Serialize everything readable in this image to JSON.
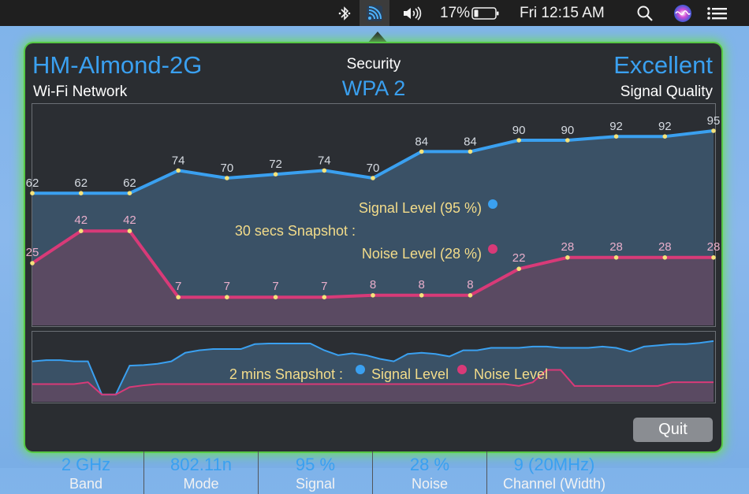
{
  "menubar": {
    "battery_percent": "17%",
    "clock": "Fri 12:15 AM",
    "icons": [
      "bluetooth-icon",
      "wifi-signal-app-icon",
      "volume-icon",
      "battery-icon",
      "spotlight-search-icon",
      "siri-icon",
      "notification-center-icon"
    ]
  },
  "header": {
    "network_name": "HM-Almond-2G",
    "network_caption": "Wi-Fi Network",
    "security_caption": "Security",
    "security_value": "WPA 2",
    "quality_value": "Excellent",
    "quality_caption": "Signal Quality"
  },
  "snapshot": {
    "title": "30 secs Snapshot :",
    "signal_legend": "Signal Level (95 %)",
    "noise_legend": "Noise  Level (28 %)"
  },
  "history": {
    "title": "2 mins Snapshot :",
    "signal_legend": "Signal Level",
    "noise_legend": "Noise  Level"
  },
  "colors": {
    "signal": "#3aa0f0",
    "noise": "#d83a78",
    "point": "#f5e27a",
    "legend_text": "#f3dc8a",
    "accent_glow": "#6fe05a"
  },
  "chart_data": [
    {
      "type": "line",
      "title": "30 secs Snapshot :",
      "x": [
        1,
        2,
        3,
        4,
        5,
        6,
        7,
        8,
        9,
        10,
        11,
        12,
        13,
        14,
        15
      ],
      "series": [
        {
          "name": "Signal Level (95 %)",
          "values": [
            62,
            62,
            62,
            74,
            70,
            72,
            74,
            70,
            84,
            84,
            90,
            90,
            92,
            92,
            95
          ]
        },
        {
          "name": "Noise  Level (28 %)",
          "values": [
            25,
            42,
            42,
            7,
            7,
            7,
            7,
            8,
            8,
            8,
            22,
            28,
            28,
            28,
            28
          ]
        }
      ],
      "ylim": [
        0,
        100
      ]
    },
    {
      "type": "area",
      "title": "2 mins Snapshot :",
      "x": [
        1,
        2,
        3,
        4,
        5,
        6,
        7,
        8,
        9,
        10,
        11,
        12,
        13,
        14,
        15,
        16,
        17,
        18,
        19,
        20,
        21,
        22,
        23,
        24,
        25,
        26,
        27,
        28,
        29,
        30,
        31,
        32,
        33,
        34,
        35,
        36,
        37,
        38,
        39,
        40,
        41,
        42,
        43,
        44,
        45,
        46,
        47,
        48,
        49,
        50
      ],
      "series": [
        {
          "name": "Signal Level",
          "values": [
            62,
            64,
            64,
            62,
            62,
            8,
            8,
            55,
            56,
            58,
            62,
            76,
            80,
            82,
            82,
            82,
            90,
            91,
            91,
            91,
            91,
            80,
            72,
            75,
            72,
            66,
            62,
            74,
            76,
            74,
            70,
            80,
            80,
            84,
            84,
            84,
            86,
            86,
            84,
            84,
            84,
            86,
            84,
            78,
            86,
            88,
            90,
            90,
            92,
            95
          ]
        },
        {
          "name": "Noise  Level",
          "values": [
            25,
            25,
            25,
            25,
            28,
            8,
            8,
            20,
            23,
            25,
            25,
            25,
            25,
            25,
            25,
            25,
            25,
            25,
            25,
            25,
            25,
            25,
            25,
            25,
            25,
            25,
            25,
            25,
            25,
            25,
            25,
            25,
            25,
            25,
            25,
            22,
            28,
            48,
            48,
            22,
            22,
            22,
            22,
            22,
            22,
            22,
            28,
            28,
            28,
            28
          ]
        }
      ],
      "ylim": [
        0,
        100
      ]
    }
  ],
  "footer": {
    "band_value": "2 GHz",
    "band_label": "Band",
    "mode_value": "802.11n",
    "mode_label": "Mode",
    "signal_value": "95 %",
    "signal_label": "Signal",
    "noise_value": "28 %",
    "noise_label": "Noise",
    "channel_value": "9 (20MHz)",
    "channel_label": "Channel (Width)",
    "quit_label": "Quit"
  }
}
